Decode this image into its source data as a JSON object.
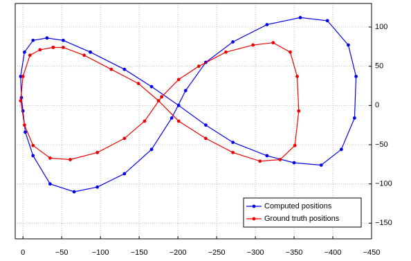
{
  "chart_data": {
    "type": "line",
    "series": [
      {
        "name": "Computed positions",
        "color": "#0000ee",
        "x": [
          -87,
          -52,
          -31,
          -13,
          -2,
          3,
          2,
          0,
          -3,
          -13,
          -35,
          -66,
          -96,
          -131,
          -166,
          -192,
          -210,
          -236,
          -271,
          -315,
          -358,
          -393,
          -420,
          -430,
          -428,
          -411,
          -385,
          -350,
          -315,
          -271,
          -236,
          -201,
          -166,
          -131,
          -87
        ],
        "values": [
          68,
          83,
          86,
          83,
          68,
          37,
          10,
          -7,
          -34,
          -64,
          -100,
          -110,
          -104,
          -87,
          -56,
          -16,
          19,
          55,
          81,
          103,
          112,
          108,
          77,
          37,
          -16,
          -56,
          -76,
          -73,
          -64,
          -47,
          -25,
          0,
          24,
          46,
          68
        ]
      },
      {
        "name": "Ground truth positions",
        "color": "#ee0000",
        "x": [
          -39,
          -22,
          -9,
          0,
          3,
          -2,
          -13,
          -35,
          -61,
          -96,
          -131,
          -157,
          -179,
          -201,
          -227,
          -262,
          -297,
          -323,
          -345,
          -354,
          -356,
          -351,
          -332,
          -306,
          -271,
          -236,
          -201,
          -175,
          -149,
          -114,
          -79,
          -52,
          -39
        ],
        "values": [
          74,
          71,
          64,
          37,
          6,
          -25,
          -51,
          -67,
          -69,
          -60,
          -42,
          -20,
          11,
          33,
          50,
          68,
          77,
          80,
          68,
          37,
          -7,
          -51,
          -69,
          -71,
          -60,
          -42,
          -20,
          6,
          28,
          46,
          64,
          74,
          74
        ]
      }
    ],
    "xlim": [
      10,
      -450
    ],
    "ylim": [
      -170,
      130
    ],
    "xticks": [
      0,
      {
        "value": -50,
        "label": "−50"
      },
      {
        "value": -100,
        "label": "−100"
      },
      {
        "value": -150,
        "label": "−150"
      },
      {
        "value": -200,
        "label": "−200"
      },
      {
        "value": -250,
        "label": "−250"
      },
      {
        "value": -300,
        "label": "−300"
      },
      {
        "value": -350,
        "label": "−350"
      },
      {
        "value": -400,
        "label": "−400"
      },
      {
        "value": -450,
        "label": "−450"
      }
    ],
    "yticks": [
      {
        "value": -150,
        "label": "−150"
      },
      {
        "value": -100,
        "label": "−100"
      },
      {
        "value": -50,
        "label": "−50"
      },
      0,
      50,
      100
    ],
    "grid": true,
    "legend": "lower right",
    "markers": true
  }
}
